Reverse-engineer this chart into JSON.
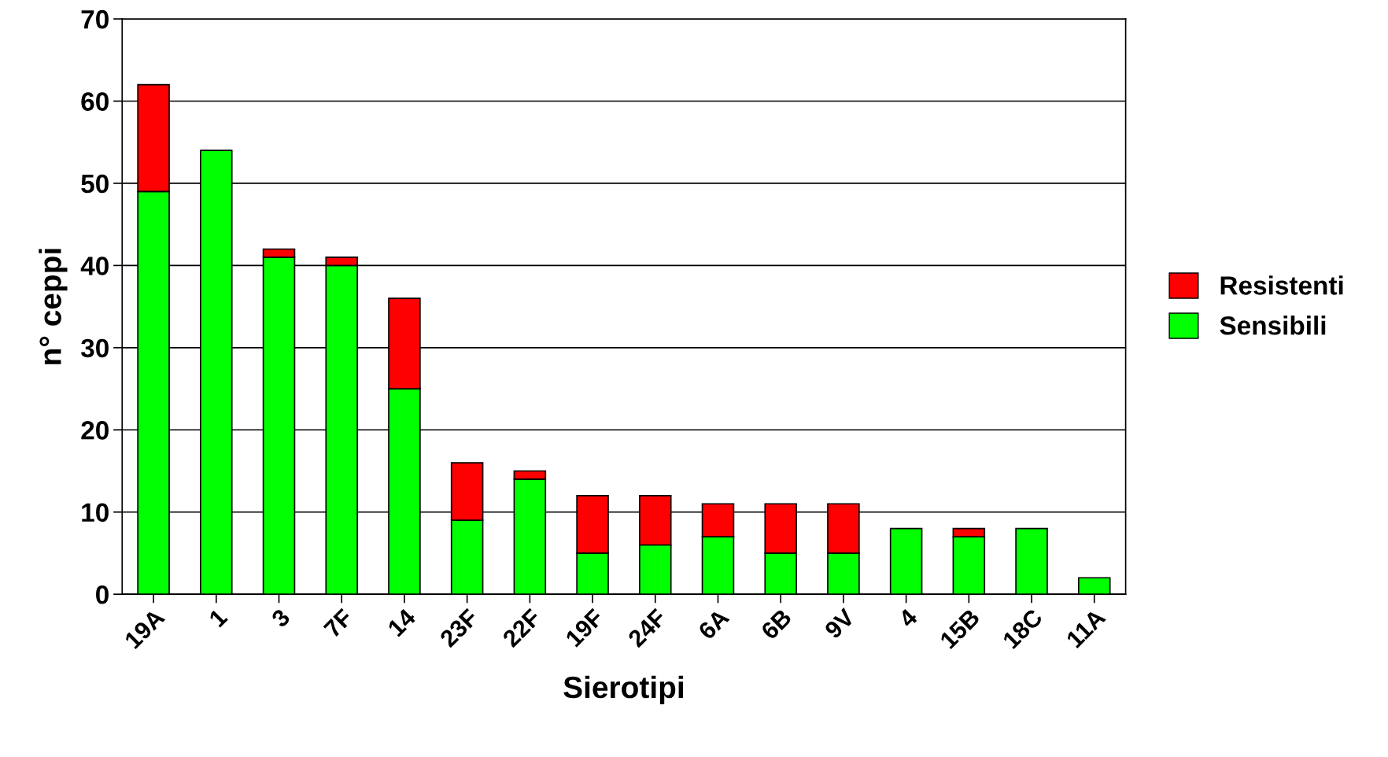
{
  "chart_data": {
    "type": "bar",
    "stacked": true,
    "xlabel": "Sierotipi",
    "ylabel": "n° ceppi",
    "categories": [
      "19A",
      "1",
      "3",
      "7F",
      "14",
      "23F",
      "22F",
      "19F",
      "24F",
      "6A",
      "6B",
      "9V",
      "4",
      "15B",
      "18C",
      "11A"
    ],
    "series": [
      {
        "name": "Sensibili",
        "color": "#00ff00",
        "values": [
          49,
          54,
          41,
          40,
          25,
          9,
          14,
          5,
          6,
          7,
          5,
          5,
          8,
          7,
          8,
          2
        ]
      },
      {
        "name": "Resistenti",
        "color": "#ff0000",
        "values": [
          13,
          0,
          1,
          1,
          11,
          7,
          1,
          7,
          6,
          4,
          6,
          6,
          0,
          1,
          0,
          0
        ]
      }
    ],
    "ylim": [
      0,
      70
    ],
    "yticks": [
      0,
      10,
      20,
      30,
      40,
      50,
      60,
      70
    ],
    "grid": "y",
    "legend": "right"
  }
}
